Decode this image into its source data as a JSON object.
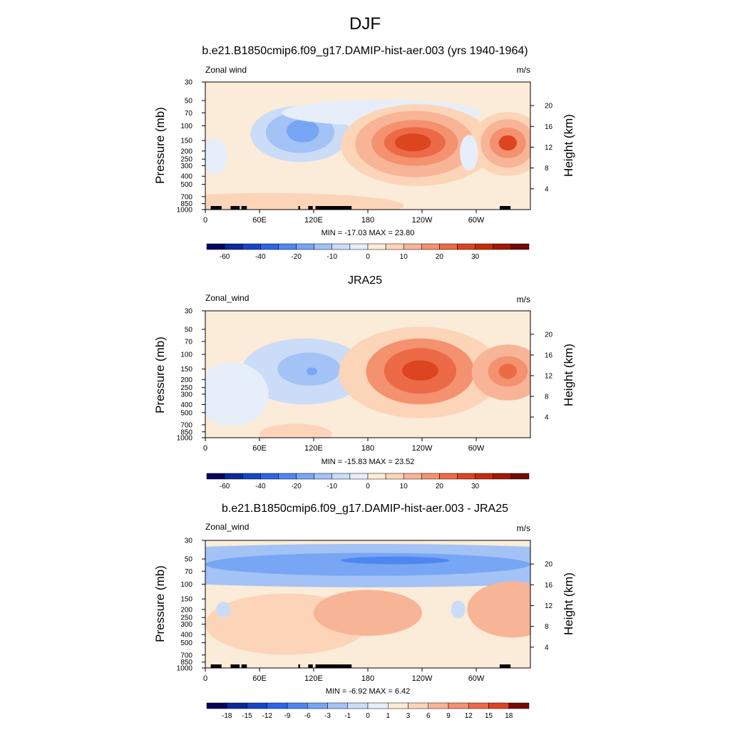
{
  "title": "DJF",
  "chart_data": [
    {
      "type": "heatmap",
      "title": "b.e21.B1850cmip6.f09_g17.DAMIP-hist-aer.003 (yrs 1940-1964)",
      "variable": "Zonal wind",
      "units": "m/s",
      "ylabel": "Pressure (mb)",
      "y2label": "Height (km)",
      "x_ticks": [
        "0",
        "60E",
        "120E",
        "180",
        "120W",
        "60W"
      ],
      "pressure_ticks": [
        "30",
        "50",
        "70",
        "100",
        "150",
        "200",
        "250",
        "300",
        "400",
        "500",
        "700",
        "850",
        "1000"
      ],
      "height_ticks": [
        "20",
        "16",
        "12",
        "8",
        "4"
      ],
      "stats": "MIN = -17.03  MAX =  23.80",
      "colorbar": {
        "levels": [
          "-60",
          "-40",
          "-20",
          "-10",
          "0",
          "10",
          "20",
          "30"
        ],
        "colors": [
          "#04065e",
          "#0a2a94",
          "#1546c4",
          "#2b66e6",
          "#4f86f0",
          "#77a6f4",
          "#a3c2f6",
          "#cbdcf8",
          "#e6eefa",
          "#fbebd9",
          "#fcd4b8",
          "#f8b496",
          "#f4916f",
          "#ec6a46",
          "#dd4420",
          "#c62b0b",
          "#a01808",
          "#710b04"
        ]
      },
      "features": [
        {
          "name": "jet-core-120W",
          "lon": 235,
          "p": 160,
          "value": 23.8
        },
        {
          "name": "jet-core-60W",
          "lon": 335,
          "p": 160,
          "value": 18
        },
        {
          "name": "easterly-min-110E",
          "lon": 110,
          "p": 120,
          "value": -17.03
        }
      ]
    },
    {
      "type": "heatmap",
      "title": "JRA25",
      "variable": "Zonal_wind",
      "units": "m/s",
      "ylabel": "Pressure (mb)",
      "y2label": "Height (km)",
      "x_ticks": [
        "0",
        "60E",
        "120E",
        "180",
        "120W",
        "60W"
      ],
      "pressure_ticks": [
        "30",
        "50",
        "70",
        "100",
        "150",
        "200",
        "250",
        "300",
        "400",
        "500",
        "700",
        "850",
        "1000"
      ],
      "height_ticks": [
        "20",
        "16",
        "12",
        "8",
        "4"
      ],
      "stats": "MIN = -15.83  MAX =  23.52",
      "colorbar": {
        "levels": [
          "-60",
          "-40",
          "-20",
          "-10",
          "0",
          "10",
          "20",
          "30"
        ],
        "colors": [
          "#04065e",
          "#0a2a94",
          "#1546c4",
          "#2b66e6",
          "#4f86f0",
          "#77a6f4",
          "#a3c2f6",
          "#cbdcf8",
          "#e6eefa",
          "#fbebd9",
          "#fcd4b8",
          "#f8b496",
          "#f4916f",
          "#ec6a46",
          "#dd4420",
          "#c62b0b",
          "#a01808",
          "#710b04"
        ]
      },
      "features": [
        {
          "name": "jet-core-120W",
          "lon": 238,
          "p": 160,
          "value": 23.52
        },
        {
          "name": "jet-core-60W",
          "lon": 335,
          "p": 160,
          "value": 16
        },
        {
          "name": "easterly-min-120E",
          "lon": 118,
          "p": 160,
          "value": -15.83
        }
      ]
    },
    {
      "type": "heatmap",
      "title": "b.e21.B1850cmip6.f09_g17.DAMIP-hist-aer.003 - JRA25",
      "variable": "Zonal_wind",
      "units": "m/s",
      "ylabel": "Pressure (mb)",
      "y2label": "Height (km)",
      "x_ticks": [
        "0",
        "60E",
        "120E",
        "180",
        "120W",
        "60W"
      ],
      "pressure_ticks": [
        "30",
        "50",
        "70",
        "100",
        "150",
        "200",
        "250",
        "300",
        "400",
        "500",
        "700",
        "850",
        "1000"
      ],
      "height_ticks": [
        "20",
        "16",
        "12",
        "8",
        "4"
      ],
      "stats": "MIN = -6.92  MAX =  6.42",
      "colorbar": {
        "levels": [
          "-18",
          "-15",
          "-12",
          "-9",
          "-6",
          "-3",
          "-1",
          "0",
          "1",
          "3",
          "6",
          "9",
          "12",
          "15",
          "18"
        ],
        "colors": [
          "#04065e",
          "#0a2a94",
          "#1546c4",
          "#2b66e6",
          "#4f86f0",
          "#77a6f4",
          "#a3c2f6",
          "#cbdcf8",
          "#e6eefa",
          "#fbebd9",
          "#fcd4b8",
          "#f8b496",
          "#f4916f",
          "#ec6a46",
          "#dd4420",
          "#710b04"
        ]
      },
      "features": [
        {
          "name": "negative-band-50mb",
          "lon": 180,
          "p": 55,
          "value": -6.92
        },
        {
          "name": "positive-max-80W",
          "lon": 340,
          "p": 200,
          "value": 6.42
        }
      ]
    }
  ]
}
